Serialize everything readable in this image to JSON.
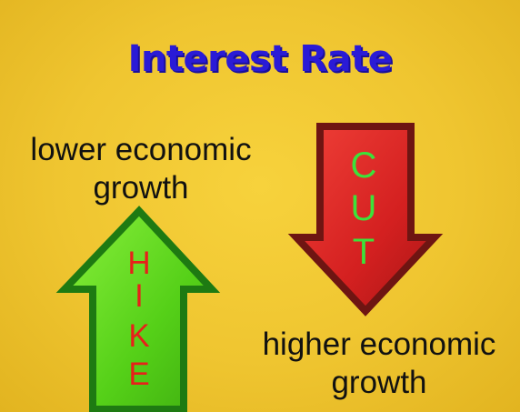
{
  "title": "Interest Rate",
  "hike": {
    "caption": "lower economic growth",
    "letters": [
      "H",
      "I",
      "K",
      "E"
    ],
    "fill_color": "#55d018",
    "border_color": "#1e7a12",
    "letter_color": "#e8201a"
  },
  "cut": {
    "caption": "higher economic growth",
    "letters": [
      "C",
      "U",
      "T"
    ],
    "fill_color": "#d42020",
    "border_color": "#6e1512",
    "letter_color": "#3ce23a"
  }
}
